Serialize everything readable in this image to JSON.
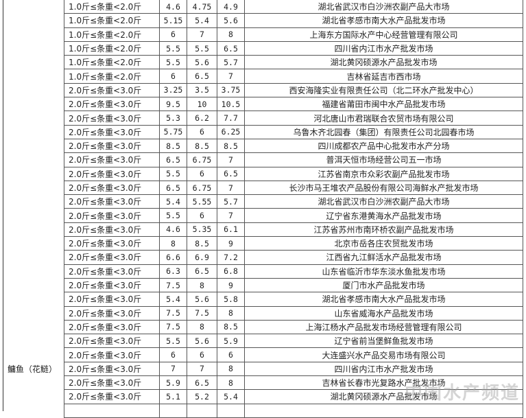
{
  "category": "鳙鱼（花鲢）",
  "watermark": "中国水产频道",
  "rows": [
    [
      "1.0斤≤条重<2.0斤",
      "4.6",
      "4.75",
      "4.9",
      "湖北省武汉市白沙洲农副产品大市场"
    ],
    [
      "1.0斤≤条重<2.0斤",
      "5.15",
      "5.4",
      "5.6",
      "湖北省孝感市南大水产品批发市场"
    ],
    [
      "1.0斤≤条重<2.0斤",
      "6",
      "7",
      "8",
      "上海东方国际水产中心经营管理有限公司"
    ],
    [
      "1.0斤≤条重<2.0斤",
      "5.5",
      "5.5",
      "6.5",
      "四川省内江市水产批发市场"
    ],
    [
      "1.0斤≤条重<2.0斤",
      "5.5",
      "5.6",
      "5.7",
      "湖北黄冈硕源水产品批发市场"
    ],
    [
      "1.0斤≤条重<2.0斤",
      "6",
      "6.5",
      "7",
      "吉林省延吉市西市场"
    ],
    [
      "2.0斤≤条重<3.0斤",
      "3.25",
      "3.5",
      "3.75",
      "西安海隆实业有限责任公司（北二环水产批发中心）"
    ],
    [
      "2.0斤≤条重<3.0斤",
      "9.5",
      "10",
      "10.5",
      "福建省莆田市闽中水产品批发市场"
    ],
    [
      "2.0斤≤条重<3.0斤",
      "5.3",
      "6.2",
      "7.7",
      "河北唐山市君瑞联合农贸市场有限公司"
    ],
    [
      "2.0斤≤条重<3.0斤",
      "5.75",
      "6",
      "6.25",
      "乌鲁木齐北园春（集团）有限责任公司北园春市场"
    ],
    [
      "2.0斤≤条重<3.0斤",
      "8.5",
      "8.5",
      "8.5",
      "四川成都农产品中心批发市水产分场"
    ],
    [
      "2.0斤≤条重<3.0斤",
      "6.5",
      "6.75",
      "7",
      "普洱天恒市场经营公司五一市场"
    ],
    [
      "2.0斤≤条重<3.0斤",
      "5.5",
      "6",
      "6.5",
      "江苏省南京市众彩农副产品批发市场"
    ],
    [
      "2.0斤≤条重<3.0斤",
      "6.5",
      "6.75",
      "7",
      "长沙市马王堆农产品股份有限公司海鲜水产批发市场"
    ],
    [
      "2.0斤≤条重<3.0斤",
      "5.4",
      "5.55",
      "5.7",
      "湖北省武汉市白沙洲农副产品大市场"
    ],
    [
      "2.0斤≤条重<3.0斤",
      "5.5",
      "6",
      "7",
      "辽宁省东港黄海水产品批发市场"
    ],
    [
      "2.0斤≤条重<3.0斤",
      "4.6",
      "5.35",
      "6.1",
      "江苏省苏州市南环桥农副产品批发市场"
    ],
    [
      "2.0斤≤条重<3.0斤",
      "8",
      "8.5",
      "9",
      "北京市岳各庄农贸批发市场"
    ],
    [
      "2.0斤≤条重<3.0斤",
      "6.6",
      "6.9",
      "7.2",
      "江西省九江鲜活水产品批发市场"
    ],
    [
      "2.0斤≤条重<3.0斤",
      "6.3",
      "6.5",
      "6.8",
      "山东省临沂市华东淡水鱼批发市场"
    ],
    [
      "2.0斤≤条重<3.0斤",
      "7.5",
      "8",
      "9",
      "厦门市水产品批发市场"
    ],
    [
      "2.0斤≤条重<3.0斤",
      "5.4",
      "5.6",
      "5.8",
      "湖北省孝感市南大水产品批发市场"
    ],
    [
      "2.0斤≤条重<3.0斤",
      "7.5",
      "7.5",
      "8",
      "山东省威海水产品批发市场"
    ],
    [
      "2.0斤≤条重<3.0斤",
      "7.5",
      "8",
      "8.5",
      "上海江杨水产品批发市场经营管理有限公司"
    ],
    [
      "2.0斤≤条重<3.0斤",
      "5.5",
      "5.6",
      "5.9",
      "辽宁省前当堡鲜鱼批发市场"
    ],
    [
      "2.0斤≤条重<3.0斤",
      "6",
      "6",
      "6",
      "大连盛兴水产品交易市场有限公司"
    ],
    [
      "2.0斤≤条重<3.0斤",
      "7",
      "7",
      "8",
      "四川省内江市水产批发市场"
    ],
    [
      "2.0斤≤条重<3.0斤",
      "5.9",
      "6.5",
      "8",
      "吉林省长春市光复路水产批发市场"
    ],
    [
      "2.0斤≤条重<3.0斤",
      "5.1",
      "5.2",
      "5.4",
      "湖北黄冈硕源水产品批发市场"
    ],
    [
      "",
      "",
      "",
      "",
      ""
    ]
  ]
}
